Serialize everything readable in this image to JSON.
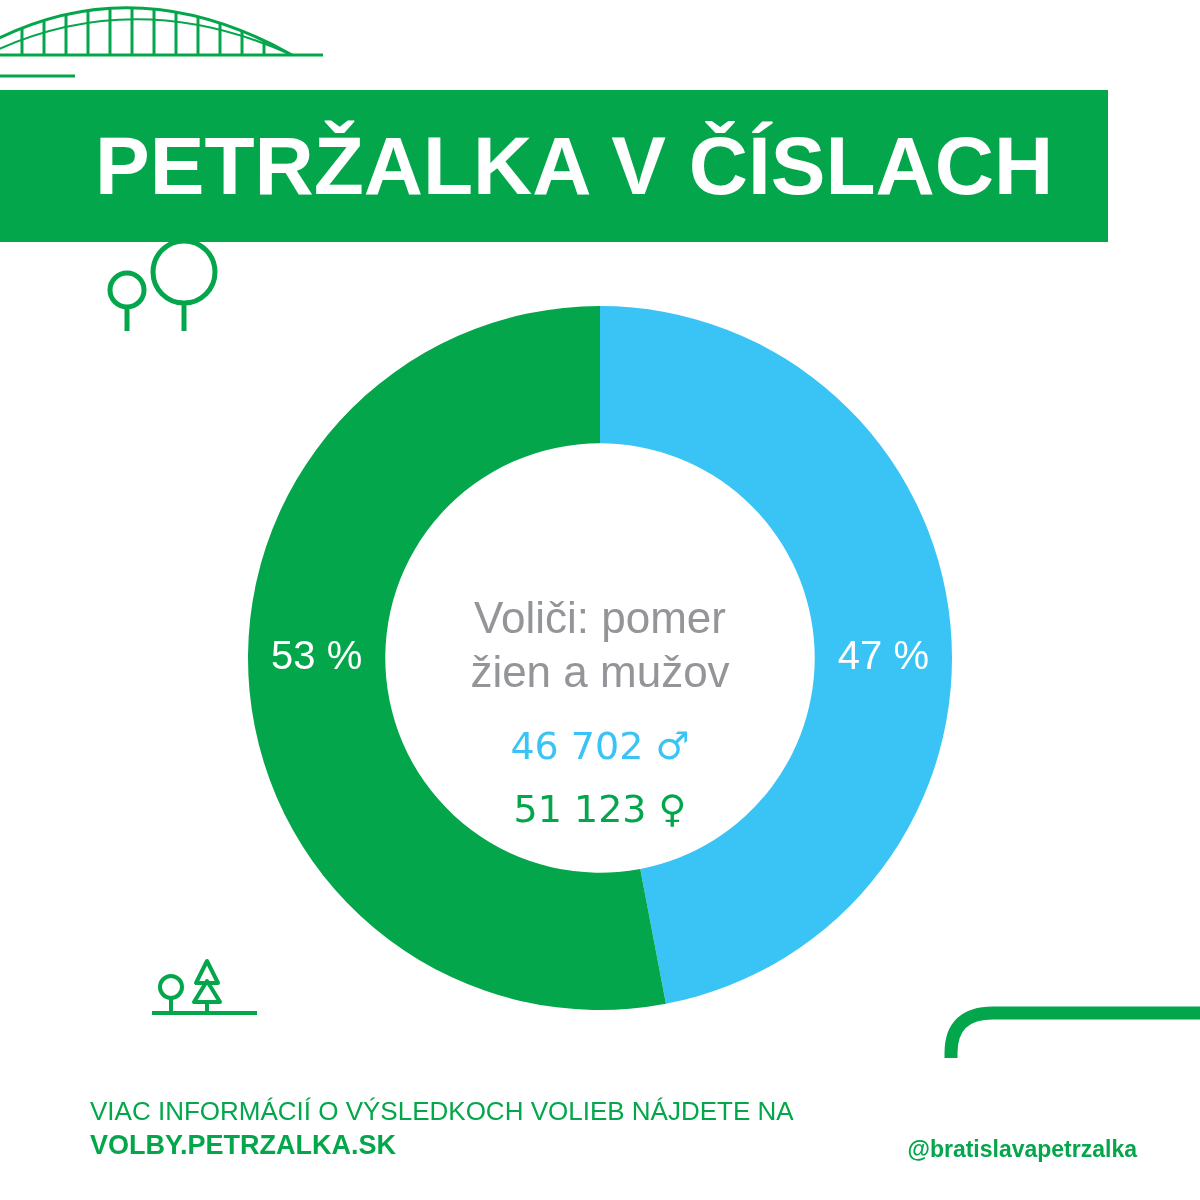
{
  "chart_data": {
    "type": "donut",
    "title": "PETRŽALKA V ČÍSLACH",
    "subtitle": "Voliči: pomer žien a mužov",
    "categories": [
      null,
      null
    ],
    "values": [
      47,
      53
    ],
    "colors": [
      "#3ac4f6",
      "#04a64b"
    ],
    "value_labels": [
      "47 %",
      "53 %"
    ],
    "annotations": [
      "46 702 ♂",
      "51 123 ♀",
      "VIAC INFORMÁCIÍ O VÝSLEDKOCH VOLIEB NÁJDETE NA",
      "VOLBY.PETRZALKA.SK",
      "@bratislavapetrzalka"
    ]
  }
}
